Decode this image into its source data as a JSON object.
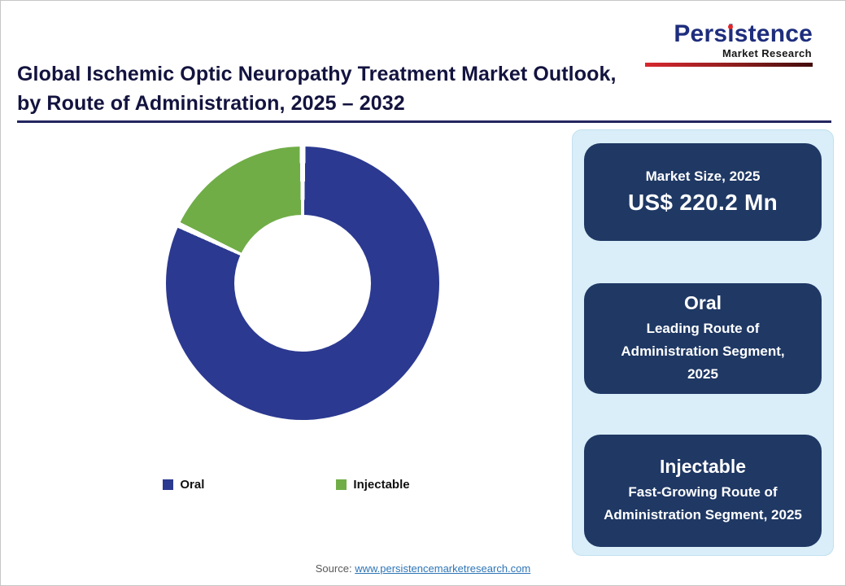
{
  "logo": {
    "name": "Persistence",
    "subtitle": "Market Research"
  },
  "header": {
    "title_line1": "Global Ischemic Optic Neuropathy Treatment Market Outlook,",
    "title_line2": "by Route of Administration, 2025 – 2032"
  },
  "chart_data": {
    "type": "pie",
    "subtype": "donut",
    "title": "Global Ischemic Optic Neuropathy Treatment Market Outlook, by Route of Administration, 2025 – 2032",
    "categories": [
      "Oral",
      "Injectable"
    ],
    "values": [
      82,
      18
    ],
    "values_note": "estimated from arc angles, percentages not labeled on chart",
    "unit": "%",
    "colors": [
      "#2b3990",
      "#70ad47"
    ],
    "legend_position": "bottom",
    "annotations": [
      "Market Size, 2025: US$ 220.2 Mn",
      "Oral: Leading Route of Administration Segment, 2025",
      "Injectable: Fast-Growing Route of Administration Segment, 2025"
    ]
  },
  "panel": {
    "market_size_card": {
      "title": "Market Size, 2025",
      "value": "US$ 220.2 Mn"
    },
    "leading_card": {
      "title": "Oral",
      "subtitle": "Leading Route of Administration Segment, 2025"
    },
    "fast_growing_card": {
      "title": "Injectable",
      "subtitle": "Fast-Growing Route of Administration Segment, 2025"
    }
  },
  "footer": {
    "source_label": "Source:",
    "source_link": "www.persistencemarketresearch.com"
  }
}
